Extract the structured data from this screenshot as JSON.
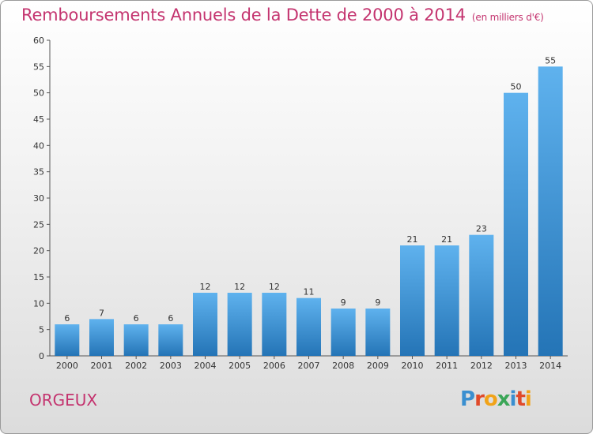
{
  "header": {
    "title": "Remboursements Annuels de la Dette de 2000 à 2014",
    "unit": "(en milliers d'€)"
  },
  "footer": {
    "commune": "ORGEUX",
    "logo": "Proxiti"
  },
  "colors": {
    "title": "#c4346f",
    "bar_light": "#5aaeea",
    "bar_dark": "#1f6fb0"
  },
  "chart_data": {
    "type": "bar",
    "title": "Remboursements Annuels de la Dette de 2000 à 2014",
    "xlabel": "",
    "ylabel": "",
    "categories": [
      "2000",
      "2001",
      "2002",
      "2003",
      "2004",
      "2005",
      "2006",
      "2007",
      "2008",
      "2009",
      "2010",
      "2011",
      "2012",
      "2013",
      "2014"
    ],
    "values": [
      6,
      7,
      6,
      6,
      12,
      12,
      12,
      11,
      9,
      9,
      21,
      21,
      23,
      50,
      55
    ],
    "ylim": [
      0,
      60
    ],
    "yticks": [
      0,
      5,
      10,
      15,
      20,
      25,
      30,
      35,
      40,
      45,
      50,
      55,
      60
    ],
    "grid": false,
    "legend": "none"
  }
}
